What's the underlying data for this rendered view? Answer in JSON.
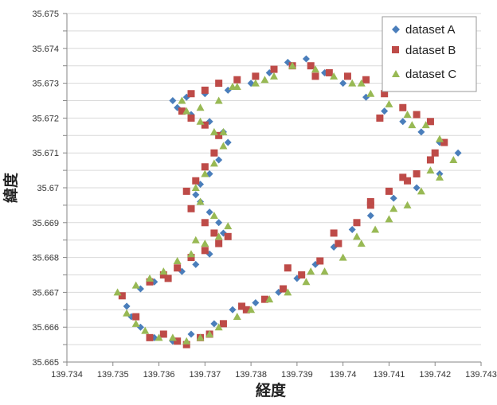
{
  "chart_data": {
    "type": "scatter",
    "title": "",
    "xlabel": "経度",
    "ylabel": "緯度",
    "xlim": [
      139.734,
      139.743
    ],
    "ylim": [
      35.665,
      35.675
    ],
    "x_ticks": [
      "139.734",
      "139.735",
      "139.736",
      "139.737",
      "139.738",
      "139.739",
      "139.74",
      "139.741",
      "139.742",
      "139.743"
    ],
    "y_ticks": [
      "35.665",
      "35.6655",
      "35.666",
      "35.6665",
      "35.667",
      "35.6675",
      "35.668",
      "35.6685",
      "35.669",
      "35.6695",
      "35.67",
      "35.6705",
      "35.671",
      "35.6715",
      "35.672",
      "35.6725",
      "35.673",
      "35.6735",
      "35.674",
      "35.6745",
      "35.675"
    ],
    "y_tick_labels": [
      "35.665",
      "",
      "35.666",
      "",
      "35.667",
      "",
      "35.668",
      "",
      "35.669",
      "",
      "35.67",
      "",
      "35.671",
      "",
      "35.672",
      "",
      "35.673",
      "",
      "35.674",
      "",
      "35.675"
    ],
    "grid": "horizontal",
    "legend": "top-right",
    "series": [
      {
        "name": "dataset A",
        "marker": "diamond",
        "color": "#4a7ebb",
        "points": [
          [
            139.7356,
            35.6671
          ],
          [
            139.7359,
            35.6673
          ],
          [
            139.7362,
            35.6674
          ],
          [
            139.7365,
            35.6676
          ],
          [
            139.7368,
            35.6678
          ],
          [
            139.7371,
            35.6681
          ],
          [
            139.7373,
            35.6684
          ],
          [
            139.7374,
            35.6687
          ],
          [
            139.7373,
            35.669
          ],
          [
            139.7371,
            35.6693
          ],
          [
            139.7369,
            35.6696
          ],
          [
            139.7368,
            35.6698
          ],
          [
            139.7369,
            35.6701
          ],
          [
            139.7371,
            35.6704
          ],
          [
            139.7373,
            35.6708
          ],
          [
            139.7375,
            35.6713
          ],
          [
            139.7374,
            35.6716
          ],
          [
            139.7371,
            35.6719
          ],
          [
            139.7367,
            35.6721
          ],
          [
            139.7364,
            35.6723
          ],
          [
            139.7363,
            35.6725
          ],
          [
            139.7366,
            35.6726
          ],
          [
            139.737,
            35.6727
          ],
          [
            139.7375,
            35.6728
          ],
          [
            139.738,
            35.673
          ],
          [
            139.7384,
            35.6733
          ],
          [
            139.7388,
            35.6736
          ],
          [
            139.7392,
            35.6737
          ],
          [
            139.7396,
            35.6733
          ],
          [
            139.74,
            35.673
          ],
          [
            139.7405,
            35.6726
          ],
          [
            139.7409,
            35.6722
          ],
          [
            139.7413,
            35.6719
          ],
          [
            139.7417,
            35.6716
          ],
          [
            139.7421,
            35.6713
          ],
          [
            139.7425,
            35.671
          ],
          [
            139.7421,
            35.6704
          ],
          [
            139.7416,
            35.67
          ],
          [
            139.7411,
            35.6697
          ],
          [
            139.7406,
            35.6692
          ],
          [
            139.7402,
            35.6688
          ],
          [
            139.7398,
            35.6683
          ],
          [
            139.7394,
            35.6678
          ],
          [
            139.739,
            35.6674
          ],
          [
            139.7386,
            35.667
          ],
          [
            139.7381,
            35.6667
          ],
          [
            139.7376,
            35.6665
          ],
          [
            139.7372,
            35.6661
          ],
          [
            139.7367,
            35.6658
          ],
          [
            139.7363,
            35.6656
          ],
          [
            139.7359,
            35.6657
          ],
          [
            139.7356,
            35.666
          ],
          [
            139.7354,
            35.6663
          ],
          [
            139.7353,
            35.6666
          ]
        ]
      },
      {
        "name": "dataset B",
        "marker": "square",
        "color": "#be4b48",
        "points": [
          [
            139.7352,
            35.6669
          ],
          [
            139.7355,
            35.6663
          ],
          [
            139.7358,
            35.6657
          ],
          [
            139.7361,
            35.6658
          ],
          [
            139.7364,
            35.6656
          ],
          [
            139.7366,
            35.6655
          ],
          [
            139.7369,
            35.6657
          ],
          [
            139.7371,
            35.6658
          ],
          [
            139.7374,
            35.6661
          ],
          [
            139.7379,
            35.6665
          ],
          [
            139.7383,
            35.6668
          ],
          [
            139.7387,
            35.6671
          ],
          [
            139.7391,
            35.6675
          ],
          [
            139.7395,
            35.6679
          ],
          [
            139.7399,
            35.6684
          ],
          [
            139.7403,
            35.669
          ],
          [
            139.7406,
            35.6695
          ],
          [
            139.741,
            35.6699
          ],
          [
            139.7413,
            35.6703
          ],
          [
            139.7416,
            35.6704
          ],
          [
            139.7419,
            35.6708
          ],
          [
            139.7422,
            35.6713
          ],
          [
            139.7419,
            35.6719
          ],
          [
            139.7416,
            35.6721
          ],
          [
            139.7413,
            35.6723
          ],
          [
            139.7409,
            35.6727
          ],
          [
            139.7405,
            35.6731
          ],
          [
            139.7401,
            35.6732
          ],
          [
            139.7397,
            35.6733
          ],
          [
            139.7393,
            35.6735
          ],
          [
            139.7389,
            35.6735
          ],
          [
            139.7385,
            35.6734
          ],
          [
            139.7381,
            35.6732
          ],
          [
            139.7377,
            35.6731
          ],
          [
            139.7373,
            35.673
          ],
          [
            139.737,
            35.6728
          ],
          [
            139.7367,
            35.6727
          ],
          [
            139.7365,
            35.6722
          ],
          [
            139.7367,
            35.672
          ],
          [
            139.737,
            35.6718
          ],
          [
            139.7373,
            35.6715
          ],
          [
            139.7372,
            35.671
          ],
          [
            139.737,
            35.6706
          ],
          [
            139.7368,
            35.6702
          ],
          [
            139.7366,
            35.6699
          ],
          [
            139.7367,
            35.6694
          ],
          [
            139.737,
            35.669
          ],
          [
            139.7372,
            35.6687
          ],
          [
            139.7373,
            35.6684
          ],
          [
            139.737,
            35.6682
          ],
          [
            139.7367,
            35.668
          ],
          [
            139.7364,
            35.6677
          ],
          [
            139.7361,
            35.6675
          ],
          [
            139.7358,
            35.6673
          ],
          [
            139.7362,
            35.6674
          ],
          [
            139.7375,
            35.6686
          ],
          [
            139.7378,
            35.6666
          ],
          [
            139.7388,
            35.6677
          ],
          [
            139.7398,
            35.6687
          ],
          [
            139.7406,
            35.6696
          ],
          [
            139.7414,
            35.6702
          ],
          [
            139.742,
            35.671
          ],
          [
            139.7408,
            35.672
          ],
          [
            139.7394,
            35.6732
          ]
        ]
      },
      {
        "name": "dataset C",
        "marker": "triangle",
        "color": "#98b954",
        "points": [
          [
            139.7351,
            35.667
          ],
          [
            139.7353,
            35.6664
          ],
          [
            139.7355,
            35.6661
          ],
          [
            139.7357,
            35.6659
          ],
          [
            139.736,
            35.6657
          ],
          [
            139.7363,
            35.6657
          ],
          [
            139.7366,
            35.6656
          ],
          [
            139.7369,
            35.6657
          ],
          [
            139.7371,
            35.6658
          ],
          [
            139.7373,
            35.666
          ],
          [
            139.7377,
            35.6663
          ],
          [
            139.738,
            35.6665
          ],
          [
            139.7384,
            35.6668
          ],
          [
            139.7388,
            35.667
          ],
          [
            139.7392,
            35.6673
          ],
          [
            139.7396,
            35.6676
          ],
          [
            139.74,
            35.668
          ],
          [
            139.7404,
            35.6684
          ],
          [
            139.7407,
            35.6688
          ],
          [
            139.741,
            35.6691
          ],
          [
            139.7414,
            35.6695
          ],
          [
            139.7417,
            35.6699
          ],
          [
            139.7421,
            35.6703
          ],
          [
            139.7424,
            35.6708
          ],
          [
            139.7421,
            35.6714
          ],
          [
            139.7418,
            35.6718
          ],
          [
            139.7414,
            35.6721
          ],
          [
            139.741,
            35.6724
          ],
          [
            139.7406,
            35.6727
          ],
          [
            139.7402,
            35.673
          ],
          [
            139.7398,
            35.6732
          ],
          [
            139.7394,
            35.6734
          ],
          [
            139.7389,
            35.6735
          ],
          [
            139.7385,
            35.6732
          ],
          [
            139.7381,
            35.673
          ],
          [
            139.7377,
            35.6729
          ],
          [
            139.7373,
            35.6725
          ],
          [
            139.7369,
            35.6723
          ],
          [
            139.7366,
            35.6722
          ],
          [
            139.7369,
            35.6719
          ],
          [
            139.7372,
            35.6716
          ],
          [
            139.7374,
            35.6712
          ],
          [
            139.7372,
            35.6707
          ],
          [
            139.737,
            35.6704
          ],
          [
            139.7368,
            35.67
          ],
          [
            139.7369,
            35.6696
          ],
          [
            139.7372,
            35.6692
          ],
          [
            139.7375,
            35.6689
          ],
          [
            139.7373,
            35.6686
          ],
          [
            139.737,
            35.6684
          ],
          [
            139.7367,
            35.6681
          ],
          [
            139.7364,
            35.6679
          ],
          [
            139.7361,
            35.6676
          ],
          [
            139.7358,
            35.6674
          ],
          [
            139.7355,
            35.6672
          ],
          [
            139.7393,
            35.6676
          ],
          [
            139.7403,
            35.6686
          ],
          [
            139.7411,
            35.6694
          ],
          [
            139.7419,
            35.6705
          ],
          [
            139.7415,
            35.6718
          ],
          [
            139.7404,
            35.673
          ],
          [
            139.7383,
            35.6731
          ],
          [
            139.7376,
            35.6729
          ],
          [
            139.7365,
            35.6725
          ],
          [
            139.7368,
            35.6685
          ],
          [
            139.7374,
            35.6716
          ]
        ]
      }
    ]
  }
}
